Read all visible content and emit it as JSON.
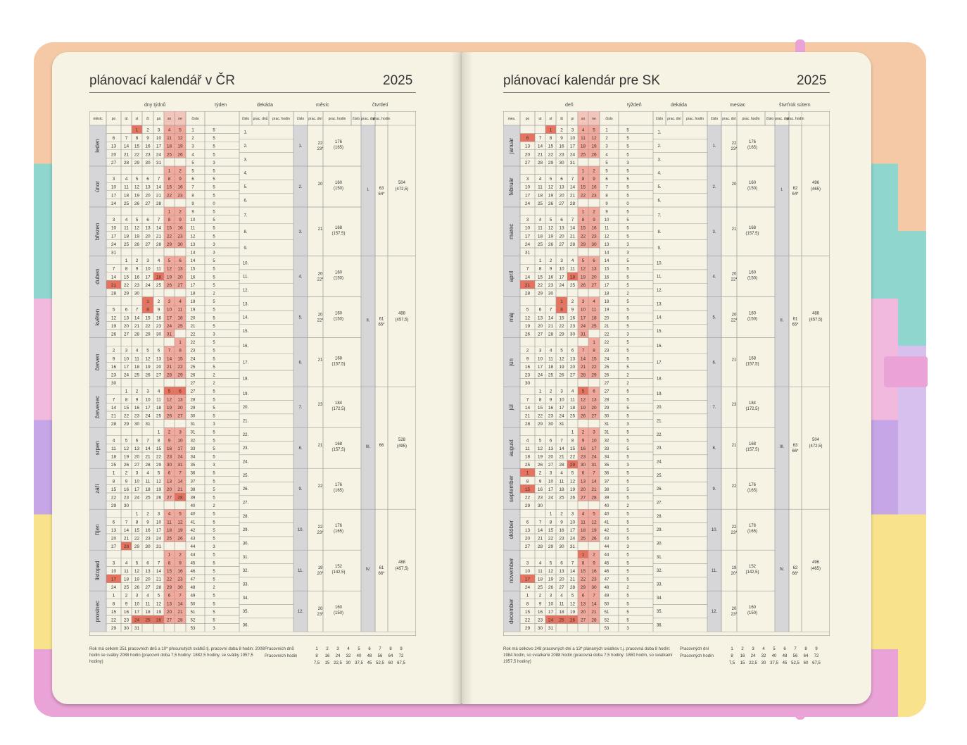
{
  "left_page": {
    "title": "plánovací kalendář v ČR",
    "year": "2025",
    "group_headers": [
      "dny týdnů",
      "týden",
      "dekáda",
      "měsíc",
      "čtvrtletí"
    ],
    "col_headers": [
      "měsíc",
      "po",
      "út",
      "st",
      "čt",
      "pá",
      "so",
      "ne",
      "číslo",
      "",
      "číslo",
      "prac. dnů",
      "prac. hodin",
      "číslo",
      "prac. dní",
      "prac. hodin",
      "číslo",
      "prac. dní",
      "prac. hodin"
    ],
    "months": [
      "leden",
      "únor",
      "březen",
      "duben",
      "květen",
      "červen",
      "červenec",
      "srpen",
      "září",
      "říjen",
      "listopad",
      "prosinec"
    ],
    "footnote": "Rok má celkem 251 pracovních dnů a 10* přesunutých svátků tj. pracovní doba 8 hodin: 2008 hodin se svátky 2088 hodin (pracovní doba 7,5 hodiny: 1882,5 hodiny, se svátky 1957,5 hodiny)",
    "stats_label_days": "Pracovních dnů",
    "stats_label_hours": "Pracovních hodin"
  },
  "right_page": {
    "title": "plánovací kalendár pre SK",
    "year": "2025",
    "group_headers": [
      "deň",
      "týždeň",
      "dekáda",
      "mesiac",
      "štvrťrok sútem"
    ],
    "col_headers": [
      "mes.",
      "po",
      "ut",
      "st",
      "št",
      "pi",
      "so",
      "ne",
      "číslo",
      "",
      "číslo",
      "prac. dní",
      "prac. hodín",
      "číslo",
      "prac. dní",
      "prac. hodín",
      "číslo",
      "prac. dní",
      "prac. hodín"
    ],
    "months": [
      "január",
      "február",
      "marec",
      "apríl",
      "máj",
      "jún",
      "júl",
      "august",
      "september",
      "október",
      "november",
      "december"
    ],
    "footnote": "Rok má celkovo 248 pracovných dní a 13* plánaných sviatkov t.j. pracovná doba 8 hodín: 1984 hodín, so sviatkami 2088 hodín (pracovná doba 7,5 hodiny: 1860 hodín, so sviatkami 1957,5 hodiny)",
    "stats_label_days": "Pracovných dní",
    "stats_label_hours": "Pracovných hodín"
  },
  "stats_days": [
    "1",
    "2",
    "3",
    "4",
    "5",
    "6",
    "7",
    "8",
    "9"
  ],
  "stats_hours": [
    "8",
    "16",
    "24",
    "32",
    "40",
    "48",
    "56",
    "64",
    "72"
  ],
  "stats_hours_75": [
    "7,5",
    "15",
    "22,5",
    "30",
    "37,5",
    "45",
    "52,5",
    "60",
    "67,5"
  ],
  "month_stats_cz": [
    {
      "n": "1.",
      "d": "22\n23*",
      "h": "176\n(165)"
    },
    {
      "n": "2.",
      "d": "20",
      "h": "160\n(150)"
    },
    {
      "n": "3.",
      "d": "21",
      "h": "168\n(157,5)"
    },
    {
      "n": "4.",
      "d": "20\n22*",
      "h": "160\n(150)"
    },
    {
      "n": "5.",
      "d": "20\n22*",
      "h": "160\n(150)"
    },
    {
      "n": "6.",
      "d": "21",
      "h": "168\n(157,5)"
    },
    {
      "n": "7.",
      "d": "23",
      "h": "184\n(172,5)"
    },
    {
      "n": "8.",
      "d": "21",
      "h": "168\n(157,5)"
    },
    {
      "n": "9.",
      "d": "22",
      "h": "176\n(165)"
    },
    {
      "n": "10.",
      "d": "22\n23*",
      "h": "176\n(165)"
    },
    {
      "n": "11.",
      "d": "19\n20*",
      "h": "152\n(142,5)"
    },
    {
      "n": "12.",
      "d": "20\n23*",
      "h": "160\n(150)"
    }
  ],
  "quarter_stats_cz": [
    {
      "n": "I.",
      "d": "63\n64*",
      "h": "504\n(472,5)"
    },
    {
      "n": "II.",
      "d": "61\n65*",
      "h": "488\n(457,5)"
    },
    {
      "n": "III.",
      "d": "66",
      "h": "528\n(495)"
    },
    {
      "n": "IV.",
      "d": "61\n66*",
      "h": "488\n(457,5)"
    }
  ],
  "quarter_stats_sk": [
    {
      "n": "I.",
      "d": "62\n64*",
      "h": "496\n(465)"
    },
    {
      "n": "II.",
      "d": "61\n65*",
      "h": "488\n(457,5)"
    },
    {
      "n": "III.",
      "d": "63\n66*",
      "h": "504\n(472,5)"
    },
    {
      "n": "IV.",
      "d": "62\n66*",
      "h": "496\n(465)"
    }
  ],
  "colors": {
    "page": "#f7f3e4",
    "highlight": "#f2a89a",
    "strong": "#e5735f",
    "gray": "#d6d6d8",
    "line": "#9a9a9a"
  }
}
